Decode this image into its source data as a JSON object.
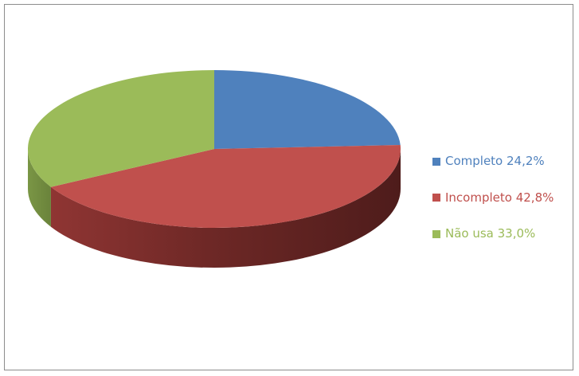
{
  "chart_data": {
    "type": "pie",
    "style": "3d",
    "slices": [
      {
        "label": "Completo",
        "value": 24.2,
        "display": "Completo 24,2%",
        "color": "#4F81BD"
      },
      {
        "label": "Incompleto",
        "value": 42.8,
        "display": "Incompleto 42,8%",
        "color": "#C0504D"
      },
      {
        "label": "Não usa",
        "value": 33.0,
        "display": "Não usa 33,0%",
        "color": "#9BBB59"
      }
    ],
    "legend_position": "right"
  },
  "legend": {
    "items": [
      {
        "label": "Completo 24,2%",
        "color": "#4F81BD"
      },
      {
        "label": "Incompleto 42,8%",
        "color": "#C0504D"
      },
      {
        "label": "Não usa 33,0%",
        "color": "#9BBB59"
      }
    ]
  }
}
